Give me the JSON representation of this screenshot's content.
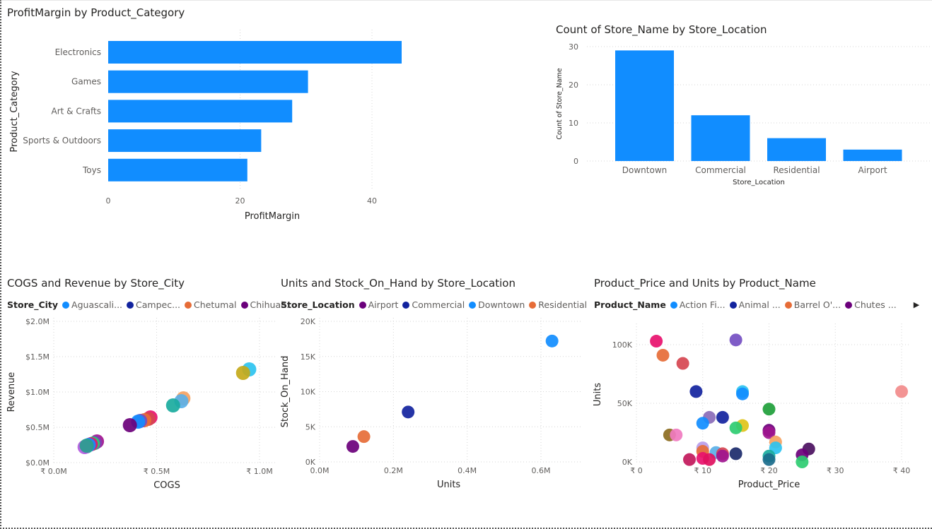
{
  "chart_data": [
    {
      "type": "bar",
      "orientation": "horizontal",
      "title": "ProfitMargin by Product_Category",
      "xlabel": "ProfitMargin",
      "ylabel": "Product_Category",
      "categories": [
        "Electronics",
        "Games",
        "Art & Crafts",
        "Sports & Outdoors",
        "Toys"
      ],
      "values": [
        44.5,
        30.3,
        27.9,
        23.2,
        21.1
      ],
      "xlim": [
        0,
        50
      ],
      "xticks": [
        "0",
        "20",
        "40"
      ],
      "color": "#118DFF",
      "grid": true
    },
    {
      "type": "bar",
      "title": "Count of Store_Name by Store_Location",
      "xlabel": "Store_Location",
      "ylabel": "Count of Store_Name",
      "categories": [
        "Downtown",
        "Commercial",
        "Residential",
        "Airport"
      ],
      "values": [
        29,
        12,
        6,
        3
      ],
      "ylim": [
        0,
        30
      ],
      "yticks": [
        "0",
        "10",
        "20",
        "30"
      ],
      "color": "#118DFF",
      "grid": true
    },
    {
      "type": "scatter",
      "title": "COGS and Revenue by Store_City",
      "xlabel": "COGS",
      "ylabel": "Revenue",
      "legend_title": "Store_City",
      "legend": [
        {
          "name": "Aguascali...",
          "color": "#118DFF"
        },
        {
          "name": "Campec...",
          "color": "#12239E"
        },
        {
          "name": "Chetumal",
          "color": "#E66C37"
        },
        {
          "name": "Chihuah...",
          "color": "#6B007B"
        }
      ],
      "xlim": [
        0,
        1.1
      ],
      "ylim": [
        0,
        2.0
      ],
      "xticks": [
        "₹ 0.0M",
        "₹ 0.5M",
        "₹ 1.0M"
      ],
      "yticks": [
        "$0.0M",
        "$0.5M",
        "$1.0M",
        "$1.5M",
        "$2.0M"
      ],
      "points": [
        {
          "x": 0.95,
          "y": 1.32,
          "color": "#2CC3F0"
        },
        {
          "x": 0.92,
          "y": 1.27,
          "color": "#C4A91A"
        },
        {
          "x": 0.63,
          "y": 0.91,
          "color": "#F5A261"
        },
        {
          "x": 0.62,
          "y": 0.87,
          "color": "#5AB0E8"
        },
        {
          "x": 0.58,
          "y": 0.81,
          "color": "#1AAB9E"
        },
        {
          "x": 0.47,
          "y": 0.64,
          "color": "#E8116E"
        },
        {
          "x": 0.46,
          "y": 0.62,
          "color": "#D64550"
        },
        {
          "x": 0.44,
          "y": 0.6,
          "color": "#E66C37"
        },
        {
          "x": 0.42,
          "y": 0.59,
          "color": "#744EC2"
        },
        {
          "x": 0.41,
          "y": 0.58,
          "color": "#118DFF"
        },
        {
          "x": 0.37,
          "y": 0.53,
          "color": "#6B007B"
        },
        {
          "x": 0.21,
          "y": 0.3,
          "color": "#A0158F"
        },
        {
          "x": 0.2,
          "y": 0.28,
          "color": "#7E3FB5"
        },
        {
          "x": 0.19,
          "y": 0.27,
          "color": "#2ECC71"
        },
        {
          "x": 0.18,
          "y": 0.26,
          "color": "#E8116E"
        },
        {
          "x": 0.17,
          "y": 0.25,
          "color": "#118DFF"
        },
        {
          "x": 0.16,
          "y": 0.23,
          "color": "#1AAB9E"
        },
        {
          "x": 0.15,
          "y": 0.22,
          "color": "#B45CE0"
        },
        {
          "x": 0.16,
          "y": 0.24,
          "color": "#2A9D8F"
        }
      ],
      "grid": true
    },
    {
      "type": "scatter",
      "title": "Units and Stock_On_Hand by Store_Location",
      "xlabel": "Units",
      "ylabel": "Stock_On_Hand",
      "legend_title": "Store_Location",
      "legend": [
        {
          "name": "Airport",
          "color": "#6B007B"
        },
        {
          "name": "Commercial",
          "color": "#12239E"
        },
        {
          "name": "Downtown",
          "color": "#118DFF"
        },
        {
          "name": "Residential",
          "color": "#E66C37"
        }
      ],
      "xlim": [
        0,
        0.7
      ],
      "ylim": [
        0,
        20
      ],
      "xticks": [
        "0.0M",
        "0.2M",
        "0.4M",
        "0.6M"
      ],
      "yticks": [
        "0K",
        "5K",
        "10K",
        "15K",
        "20K"
      ],
      "points": [
        {
          "x": 0.63,
          "y": 17.2,
          "color": "#118DFF"
        },
        {
          "x": 0.24,
          "y": 7.1,
          "color": "#12239E"
        },
        {
          "x": 0.12,
          "y": 3.6,
          "color": "#E66C37"
        },
        {
          "x": 0.09,
          "y": 2.2,
          "color": "#6B007B"
        }
      ],
      "grid": true
    },
    {
      "type": "scatter",
      "title": "Product_Price and Units by Product_Name",
      "xlabel": "Product_Price",
      "ylabel": "Units",
      "legend_title": "Product_Name",
      "legend": [
        {
          "name": "Action Fi...",
          "color": "#118DFF"
        },
        {
          "name": "Animal ...",
          "color": "#12239E"
        },
        {
          "name": "Barrel O'...",
          "color": "#E66C37"
        },
        {
          "name": "Chutes ...",
          "color": "#6B007B"
        }
      ],
      "xlim": [
        0,
        40
      ],
      "ylim": [
        0,
        115
      ],
      "xticks": [
        "₹ 0",
        "₹ 10",
        "₹ 20",
        "₹ 30",
        "₹ 40"
      ],
      "yticks": [
        "0K",
        "50K",
        "100K"
      ],
      "points": [
        {
          "x": 3,
          "y": 103,
          "color": "#E8116E"
        },
        {
          "x": 4,
          "y": 91,
          "color": "#E66C37"
        },
        {
          "x": 7,
          "y": 84,
          "color": "#D64550"
        },
        {
          "x": 15,
          "y": 104,
          "color": "#744EC2"
        },
        {
          "x": 9,
          "y": 60,
          "color": "#12239E"
        },
        {
          "x": 16,
          "y": 60,
          "color": "#2CC3F0"
        },
        {
          "x": 16,
          "y": 58,
          "color": "#118DFF"
        },
        {
          "x": 20,
          "y": 45,
          "color": "#1E9E3A"
        },
        {
          "x": 40,
          "y": 60,
          "color": "#F28B8B"
        },
        {
          "x": 11,
          "y": 38,
          "color": "#8A6BB8"
        },
        {
          "x": 13,
          "y": 38,
          "color": "#12239E"
        },
        {
          "x": 10,
          "y": 33,
          "color": "#118DFF"
        },
        {
          "x": 16,
          "y": 31,
          "color": "#E0C31A"
        },
        {
          "x": 15,
          "y": 29,
          "color": "#2ECC71"
        },
        {
          "x": 20,
          "y": 27,
          "color": "#6B007B"
        },
        {
          "x": 20,
          "y": 25,
          "color": "#A0158F"
        },
        {
          "x": 5,
          "y": 23,
          "color": "#8C6D1F"
        },
        {
          "x": 6,
          "y": 23,
          "color": "#F07BC0"
        },
        {
          "x": 21,
          "y": 17,
          "color": "#F5A261"
        },
        {
          "x": 21,
          "y": 12,
          "color": "#2CC3F0"
        },
        {
          "x": 10,
          "y": 12,
          "color": "#B89DEB"
        },
        {
          "x": 10,
          "y": 9,
          "color": "#E66C37"
        },
        {
          "x": 12,
          "y": 8,
          "color": "#5AB0E8"
        },
        {
          "x": 13,
          "y": 7,
          "color": "#D64550"
        },
        {
          "x": 15,
          "y": 7,
          "color": "#1B2A6B"
        },
        {
          "x": 20,
          "y": 5,
          "color": "#1AAB9E"
        },
        {
          "x": 26,
          "y": 11,
          "color": "#4B1060"
        },
        {
          "x": 25,
          "y": 6,
          "color": "#6B007B"
        },
        {
          "x": 8,
          "y": 2,
          "color": "#C2185B"
        },
        {
          "x": 10,
          "y": 3,
          "color": "#E8116E"
        },
        {
          "x": 11,
          "y": 2,
          "color": "#E0115F"
        },
        {
          "x": 13,
          "y": 5,
          "color": "#A0158F"
        },
        {
          "x": 20,
          "y": 2,
          "color": "#1B6D8C"
        },
        {
          "x": 25,
          "y": 0,
          "color": "#2ECC71"
        }
      ],
      "grid": true
    }
  ]
}
